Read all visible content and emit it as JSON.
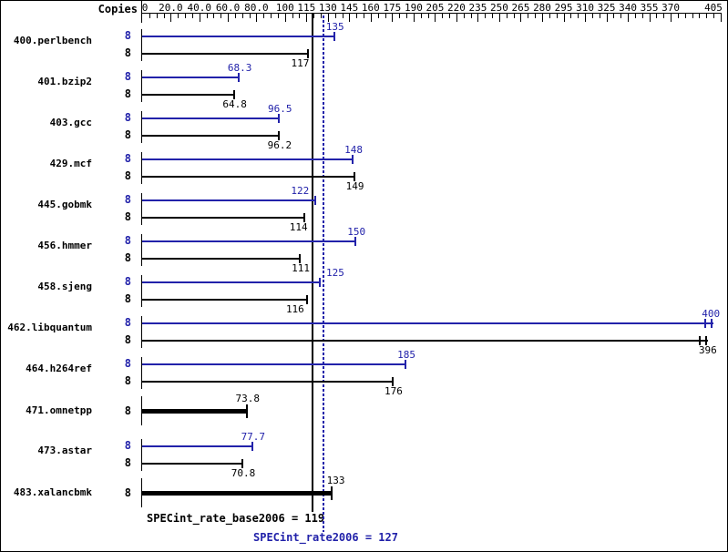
{
  "copies_column_label": "Copies",
  "colors": {
    "peak_blue": "#2222aa",
    "base_black": "#000000",
    "background": "#ffffff"
  },
  "axis": {
    "min": 0,
    "max": 405,
    "minor_tick_step": 5,
    "tick_labels": [
      {
        "value": 0,
        "text": "0"
      },
      {
        "value": 20,
        "text": "20.0"
      },
      {
        "value": 40,
        "text": "40.0"
      },
      {
        "value": 60,
        "text": "60.0"
      },
      {
        "value": 80,
        "text": "80.0"
      },
      {
        "value": 100,
        "text": "100"
      },
      {
        "value": 115,
        "text": "115"
      },
      {
        "value": 130,
        "text": "130"
      },
      {
        "value": 145,
        "text": "145"
      },
      {
        "value": 160,
        "text": "160"
      },
      {
        "value": 175,
        "text": "175"
      },
      {
        "value": 190,
        "text": "190"
      },
      {
        "value": 205,
        "text": "205"
      },
      {
        "value": 220,
        "text": "220"
      },
      {
        "value": 235,
        "text": "235"
      },
      {
        "value": 250,
        "text": "250"
      },
      {
        "value": 265,
        "text": "265"
      },
      {
        "value": 280,
        "text": "280"
      },
      {
        "value": 295,
        "text": "295"
      },
      {
        "value": 310,
        "text": "310"
      },
      {
        "value": 325,
        "text": "325"
      },
      {
        "value": 340,
        "text": "340"
      },
      {
        "value": 355,
        "text": "355"
      },
      {
        "value": 370,
        "text": "370"
      },
      {
        "value": 405,
        "text": "405"
      }
    ]
  },
  "chart_data": {
    "type": "bar",
    "orientation": "horizontal",
    "title": "",
    "xlabel": "",
    "ylabel": "Copies",
    "xlim": [
      0,
      405
    ],
    "grid": false,
    "legend_position": "none",
    "benchmarks": [
      {
        "name": "400.perlbench",
        "peak": {
          "copies": "8",
          "value": 135,
          "label": "135"
        },
        "base": {
          "copies": "8",
          "value": 117,
          "label": "117"
        }
      },
      {
        "name": "401.bzip2",
        "peak": {
          "copies": "8",
          "value": 68.3,
          "label": "68.3"
        },
        "base": {
          "copies": "8",
          "value": 64.8,
          "label": "64.8"
        }
      },
      {
        "name": "403.gcc",
        "peak": {
          "copies": "8",
          "value": 96.5,
          "label": "96.5"
        },
        "base": {
          "copies": "8",
          "value": 96.2,
          "label": "96.2"
        }
      },
      {
        "name": "429.mcf",
        "peak": {
          "copies": "8",
          "value": 148,
          "label": "148"
        },
        "base": {
          "copies": "8",
          "value": 149,
          "label": "149"
        }
      },
      {
        "name": "445.gobmk",
        "peak": {
          "copies": "8",
          "value": 122,
          "label": "122"
        },
        "base": {
          "copies": "8",
          "value": 114,
          "label": "114"
        }
      },
      {
        "name": "456.hmmer",
        "peak": {
          "copies": "8",
          "value": 150,
          "label": "150"
        },
        "base": {
          "copies": "8",
          "value": 111,
          "label": "111"
        }
      },
      {
        "name": "458.sjeng",
        "peak": {
          "copies": "8",
          "value": 125,
          "label": "125"
        },
        "base": {
          "copies": "8",
          "value": 116,
          "label": "116"
        }
      },
      {
        "name": "462.libquantum",
        "run_range_ticks": true,
        "peak": {
          "copies": "8",
          "value": 400,
          "label": "400"
        },
        "base": {
          "copies": "8",
          "value": 396,
          "label": "396"
        }
      },
      {
        "name": "464.h264ref",
        "peak": {
          "copies": "8",
          "value": 185,
          "label": "185"
        },
        "base": {
          "copies": "8",
          "value": 176,
          "label": "176"
        }
      },
      {
        "name": "471.omnetpp",
        "merged": {
          "copies": "8",
          "value": 73.8,
          "label": "73.8"
        }
      },
      {
        "name": "473.astar",
        "peak": {
          "copies": "8",
          "value": 77.7,
          "label": "77.7"
        },
        "base": {
          "copies": "8",
          "value": 70.8,
          "label": "70.8"
        }
      },
      {
        "name": "483.xalancbmk",
        "merged": {
          "copies": "8",
          "value": 133,
          "label": "133"
        }
      }
    ],
    "reference_lines": [
      {
        "name": "base",
        "label": "SPECint_rate_base2006 = 119",
        "value": 119,
        "style": "solid",
        "color": "#000000"
      },
      {
        "name": "peak",
        "label": "SPECint_rate2006 = 127",
        "value": 127,
        "style": "dotted",
        "color": "#2222aa"
      }
    ]
  }
}
